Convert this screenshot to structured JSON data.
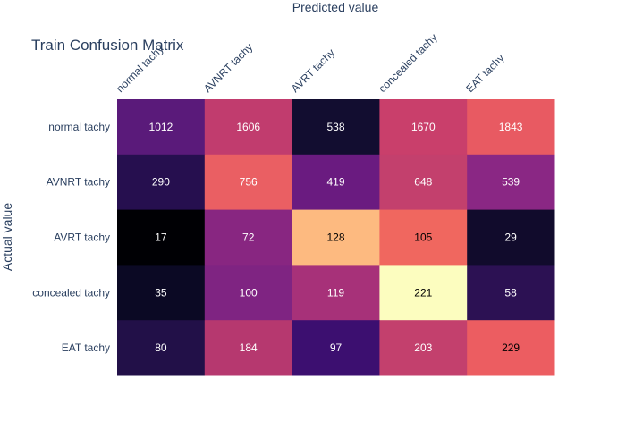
{
  "chart_data": {
    "type": "heatmap",
    "title": "Train Confusion Matrix",
    "xlabel": "Predicted value",
    "ylabel": "Actual value",
    "x_categories": [
      "normal tachy",
      "AVNRT tachy",
      "AVRT tachy",
      "concealed tachy",
      "EAT tachy"
    ],
    "y_categories": [
      "normal tachy",
      "AVNRT tachy",
      "AVRT tachy",
      "concealed tachy",
      "EAT tachy"
    ],
    "values": [
      [
        1012,
        1606,
        538,
        1670,
        1843
      ],
      [
        290,
        756,
        419,
        648,
        539
      ],
      [
        17,
        72,
        128,
        105,
        29
      ],
      [
        35,
        100,
        119,
        221,
        58
      ],
      [
        80,
        184,
        97,
        203,
        229
      ]
    ],
    "colors": [
      [
        "#5a1a7a",
        "#c13c6e",
        "#120d30",
        "#c93f6b",
        "#e85a62"
      ],
      [
        "#260f4f",
        "#ea5f63",
        "#6a1b80",
        "#c3406d",
        "#8a2784"
      ],
      [
        "#000004",
        "#882681",
        "#fdba80",
        "#f0675f",
        "#110b2c"
      ],
      [
        "#0b0924",
        "#7f2482",
        "#a73179",
        "#fcfdbf",
        "#2c1153"
      ],
      [
        "#221048",
        "#b6386f",
        "#3c0f70",
        "#c3406d",
        "#ec5d61"
      ]
    ],
    "dark_text_cells": [
      [
        2,
        2
      ],
      [
        2,
        3
      ],
      [
        3,
        3
      ],
      [
        4,
        4
      ]
    ],
    "colorscale": "magma",
    "legend": "none",
    "grid": false
  }
}
